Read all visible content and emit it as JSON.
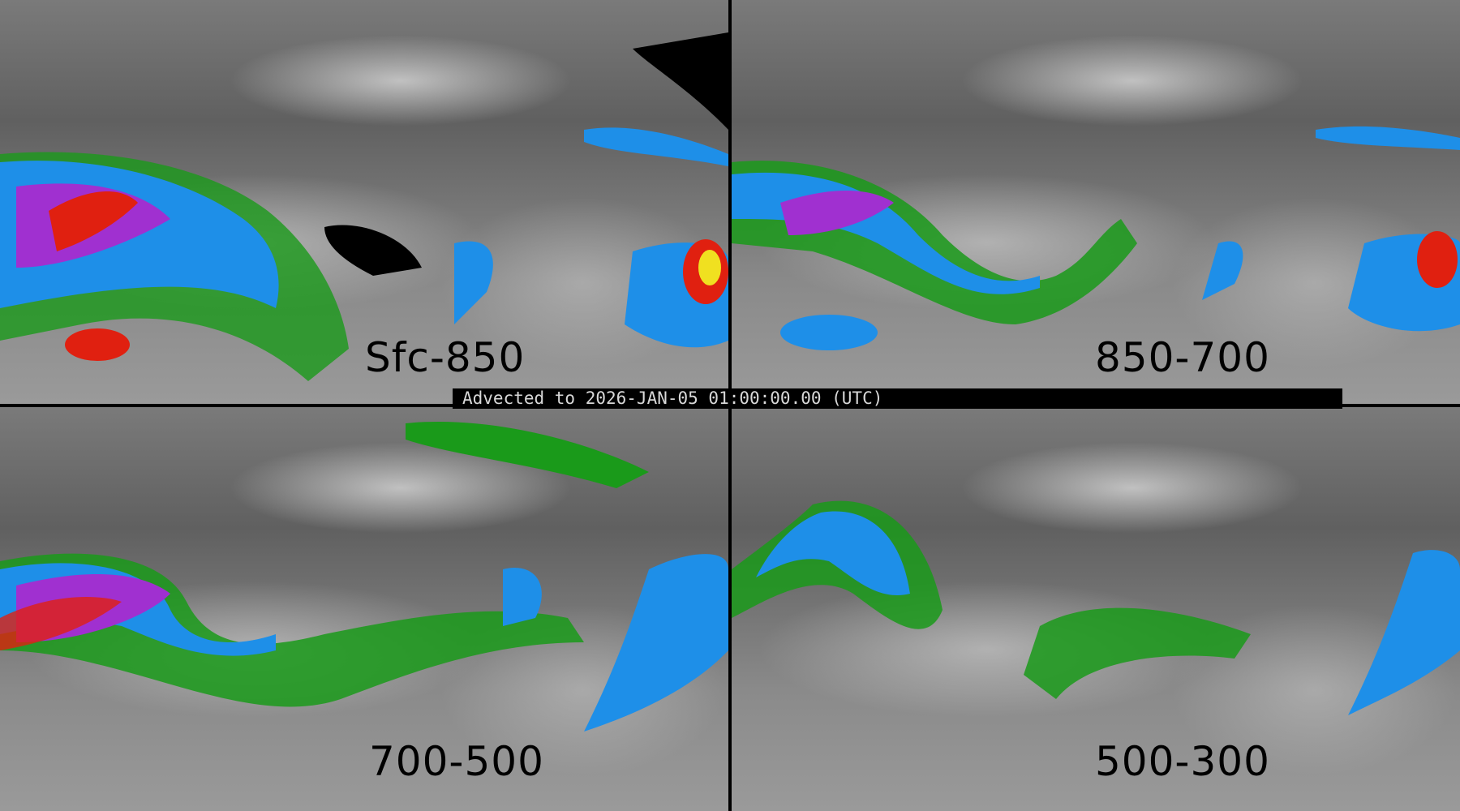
{
  "timestamp_label": "Advected to 2026-JAN-05 01:00:00.00 (UTC)",
  "panels": [
    {
      "layer": "Sfc-850"
    },
    {
      "layer": "850-700"
    },
    {
      "layer": "700-500"
    },
    {
      "layer": "500-300"
    }
  ],
  "colors": {
    "background": "#6e6e6e",
    "low": "#1a9a1a",
    "mid": "#1e8fe8",
    "high": "#a030d0",
    "peak": "#e02010",
    "max": "#f0e020"
  }
}
